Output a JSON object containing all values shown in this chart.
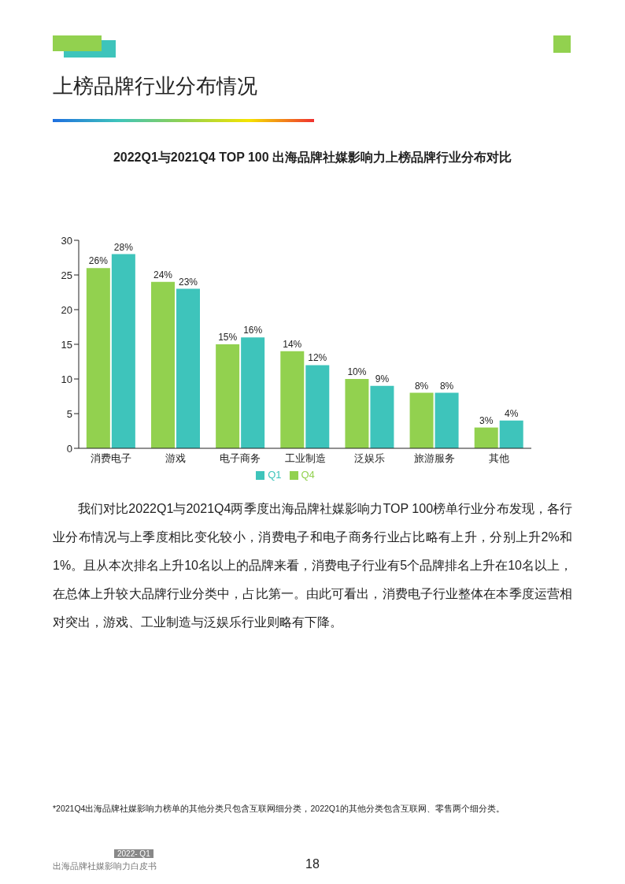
{
  "chart_data": {
    "type": "bar",
    "title": "上榜品牌行业分布情况",
    "subtitle": "2022Q1与2021Q4 TOP 100 出海品牌社媒影响力上榜品牌行业分布对比",
    "categories": [
      "消费电子",
      "游戏",
      "电子商务",
      "工业制造",
      "泛娱乐",
      "旅游服务",
      "其他"
    ],
    "series": [
      {
        "name": "Q4",
        "color": "#92d14f",
        "values": [
          26,
          24,
          15,
          14,
          10,
          8,
          3
        ],
        "value_labels": [
          "26%",
          "24%",
          "15%",
          "14%",
          "10%",
          "8%",
          "3%"
        ]
      },
      {
        "name": "Q1",
        "color": "#3ec4bb",
        "values": [
          28,
          23,
          16,
          12,
          9,
          8,
          4
        ],
        "value_labels": [
          "28%",
          "23%",
          "16%",
          "12%",
          "9%",
          "8%",
          "4%"
        ]
      }
    ],
    "ylim": [
      0,
      30
    ],
    "yticks": [
      0,
      5,
      10,
      15,
      20,
      25,
      30
    ],
    "grid": false,
    "legend": "bottom",
    "annotations": [
      "我们对比2022Q1与2021Q4两季度出海品牌社媒影响力TOP 100榜单行业分布发现，各行业分布情况与上季度相比变化较小，消费电子和电子商务行业占比略有上升，分别上升2%和1%。且从本次排名上升10名以上的品牌来看，消费电子行业有5个品牌排名上升在10名以上，在总体上升较大品牌行业分类中，占比第一。由此可看出，消费电子行业整体在本季度运营相对突出，游戏、工业制造与泛娱乐行业则略有下降。",
      "*2021Q4出海品牌社媒影响力榜单的其他分类只包含互联网细分类，2022Q1的其他分类包含互联网、零售两个细分类。",
      "2022- Q1",
      "出海品牌社媒影响力白皮书",
      "18"
    ]
  }
}
